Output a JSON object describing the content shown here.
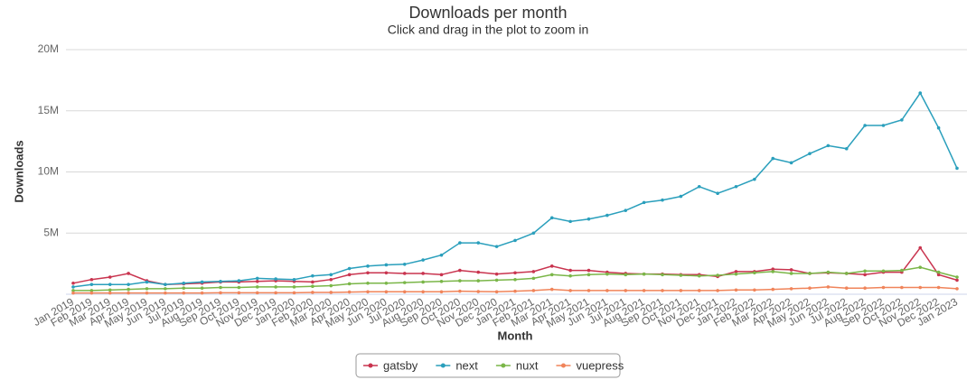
{
  "chart_data": {
    "type": "line",
    "title": "Downloads per month",
    "subtitle": "Click and drag in the plot to zoom in",
    "y_label": "Downloads",
    "x_label": "Month",
    "categories": [
      "Jan 2019",
      "Feb 2019",
      "Mar 2019",
      "Apr 2019",
      "May 2019",
      "Jun 2019",
      "Jul 2019",
      "Aug 2019",
      "Sep 2019",
      "Oct 2019",
      "Nov 2019",
      "Dec 2019",
      "Jan 2020",
      "Feb 2020",
      "Mar 2020",
      "Apr 2020",
      "May 2020",
      "Jun 2020",
      "Jul 2020",
      "Aug 2020",
      "Sep 2020",
      "Oct 2020",
      "Nov 2020",
      "Dec 2020",
      "Jan 2021",
      "Feb 2021",
      "Mar 2021",
      "Apr 2021",
      "May 2021",
      "Jun 2021",
      "Jul 2021",
      "Aug 2021",
      "Sep 2021",
      "Oct 2021",
      "Nov 2021",
      "Dec 2021",
      "Jan 2022",
      "Feb 2022",
      "Mar 2022",
      "Apr 2022",
      "May 2022",
      "Jun 2022",
      "Jul 2022",
      "Aug 2022",
      "Sep 2022",
      "Oct 2022",
      "Nov 2022",
      "Dec 2022",
      "Jan 2023"
    ],
    "series": [
      {
        "name": "gatsby",
        "color": "#c9344f",
        "values": [
          0.9,
          1.2,
          1.4,
          1.7,
          1.1,
          0.8,
          0.85,
          0.9,
          1.0,
          1.0,
          1.05,
          1.1,
          1.05,
          1.0,
          1.2,
          1.6,
          1.75,
          1.75,
          1.7,
          1.7,
          1.6,
          1.95,
          1.8,
          1.65,
          1.75,
          1.85,
          2.3,
          1.95,
          1.95,
          1.8,
          1.7,
          1.65,
          1.65,
          1.6,
          1.6,
          1.45,
          1.85,
          1.85,
          2.05,
          2.0,
          1.7,
          1.75,
          1.7,
          1.6,
          1.8,
          1.8,
          3.8,
          1.6,
          1.15
        ]
      },
      {
        "name": "next",
        "color": "#2a9fbc",
        "values": [
          0.6,
          0.8,
          0.8,
          0.8,
          1.0,
          0.8,
          0.9,
          1.0,
          1.05,
          1.1,
          1.3,
          1.25,
          1.2,
          1.5,
          1.6,
          2.1,
          2.3,
          2.4,
          2.45,
          2.8,
          3.2,
          4.2,
          4.2,
          3.9,
          4.4,
          5.0,
          6.25,
          5.95,
          6.15,
          6.45,
          6.85,
          7.5,
          7.7,
          8.0,
          8.8,
          8.25,
          8.8,
          9.4,
          11.1,
          10.75,
          11.5,
          12.15,
          11.9,
          13.8,
          13.8,
          14.25,
          16.45,
          13.6,
          10.3
        ]
      },
      {
        "name": "nuxt",
        "color": "#7ab648",
        "values": [
          0.3,
          0.3,
          0.35,
          0.4,
          0.45,
          0.45,
          0.5,
          0.5,
          0.55,
          0.55,
          0.6,
          0.6,
          0.6,
          0.65,
          0.7,
          0.85,
          0.9,
          0.9,
          0.95,
          1.0,
          1.05,
          1.1,
          1.1,
          1.15,
          1.2,
          1.3,
          1.6,
          1.5,
          1.6,
          1.65,
          1.6,
          1.65,
          1.6,
          1.55,
          1.5,
          1.55,
          1.65,
          1.75,
          1.85,
          1.7,
          1.7,
          1.8,
          1.7,
          1.9,
          1.9,
          1.95,
          2.2,
          1.8,
          1.4
        ]
      },
      {
        "name": "vuepress",
        "color": "#f0845a",
        "values": [
          0.1,
          0.1,
          0.1,
          0.1,
          0.1,
          0.1,
          0.1,
          0.1,
          0.12,
          0.12,
          0.12,
          0.12,
          0.12,
          0.15,
          0.15,
          0.18,
          0.2,
          0.2,
          0.2,
          0.2,
          0.2,
          0.25,
          0.22,
          0.2,
          0.25,
          0.3,
          0.4,
          0.3,
          0.3,
          0.3,
          0.3,
          0.3,
          0.3,
          0.3,
          0.3,
          0.3,
          0.35,
          0.35,
          0.4,
          0.45,
          0.5,
          0.6,
          0.5,
          0.5,
          0.55,
          0.55,
          0.55,
          0.55,
          0.45
        ]
      }
    ],
    "ylim": [
      0,
      20
    ],
    "yticks": [
      {
        "value": 5,
        "label": "5M"
      },
      {
        "value": 10,
        "label": "10M"
      },
      {
        "value": 15,
        "label": "15M"
      },
      {
        "value": 20,
        "label": "20M"
      }
    ],
    "grid": true,
    "legend": "bottom"
  }
}
